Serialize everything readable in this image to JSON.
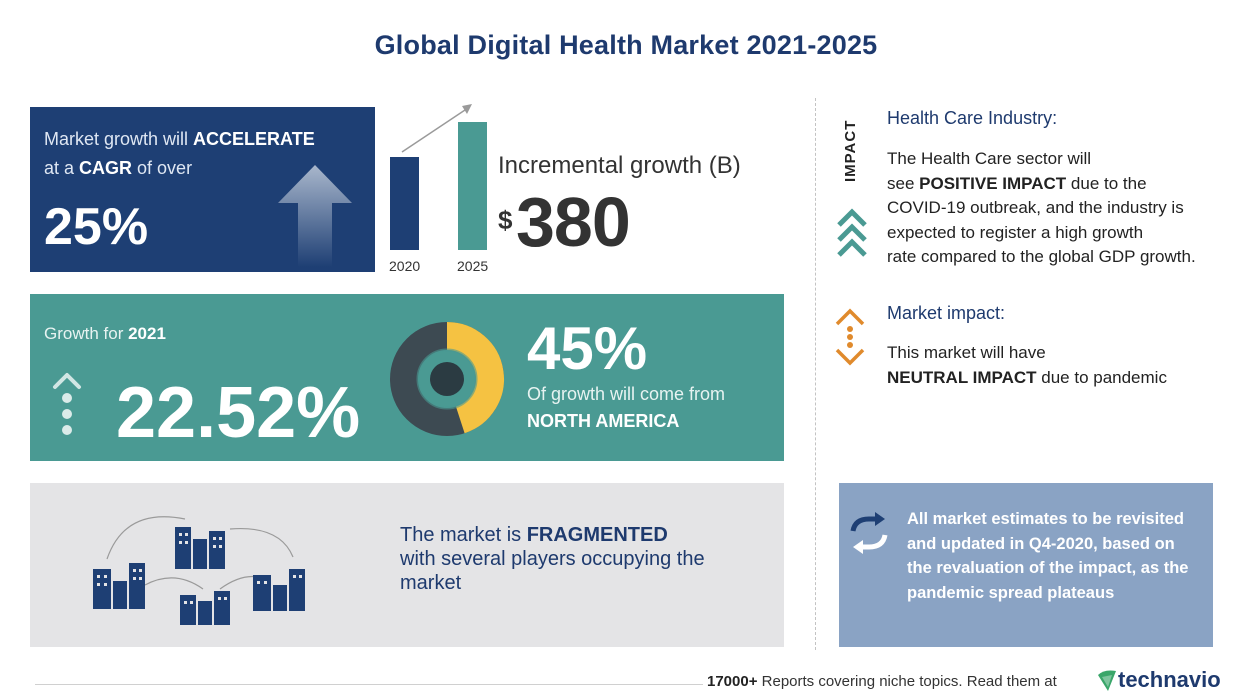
{
  "title": "Global Digital Health Market 2021-2025",
  "cagr": {
    "line1_pre": "Market growth will ",
    "line1_strong": "ACCELERATE",
    "line2_pre": "at a ",
    "line2_strong": "CAGR",
    "line2_post": " of over",
    "value": "25%"
  },
  "incremental": {
    "label": "Incremental growth (B)",
    "currency": "$",
    "value": "380",
    "year_start": "2020",
    "year_end": "2025"
  },
  "growth": {
    "label_pre": "Growth for ",
    "label_year": "2021",
    "value": "22.52%",
    "region_pct": "45%",
    "region_text": "Of growth will come from",
    "region_name": "NORTH AMERICA",
    "region_share": 45
  },
  "fragmented": {
    "line1_pre": "The market is ",
    "line1_strong": "FRAGMENTED",
    "line2": "with several players occupying the",
    "line3": "market"
  },
  "impact": {
    "vertical_label": "IMPACT",
    "heading": "Health Care Industry:",
    "body_1": "The Health Care sector will",
    "body_2_pre": "see ",
    "body_2_strong": "POSITIVE IMPACT",
    "body_2_post": " due to the",
    "body_3": "COVID-19 outbreak, and the industry is",
    "body_4": "expected to register a high growth",
    "body_5": "rate compared to the global GDP growth."
  },
  "market_impact": {
    "heading": "Market impact:",
    "body_1": "This market will have",
    "body_2_strong": "NEUTRAL IMPACT",
    "body_2_post": " due to pandemic"
  },
  "note": {
    "text": "All market estimates to be revisited and updated in Q4-2020, based on the revaluation of the impact, as the pandemic spread plateaus"
  },
  "footer": {
    "count": "17000+",
    "text": " Reports covering niche topics. Read them at",
    "brand": "technavio"
  },
  "colors": {
    "navy": "#1e3f74",
    "teal": "#4a9a93",
    "gold": "#f5c242",
    "slate": "#3d4a52",
    "orange": "#e08a2c",
    "note_bg": "#8aa3c4"
  }
}
